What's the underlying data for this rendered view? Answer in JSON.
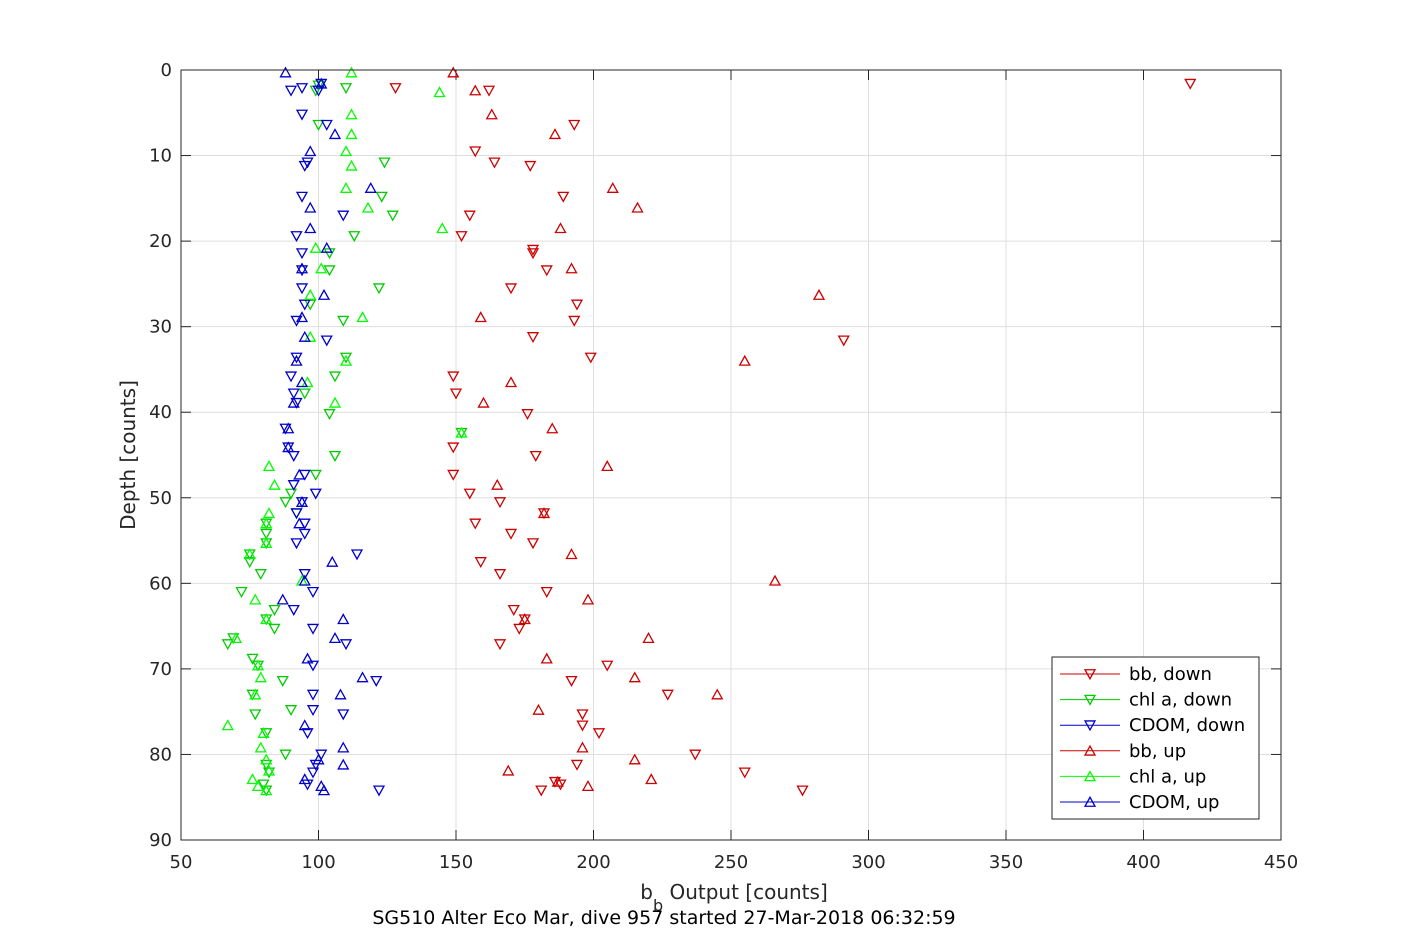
{
  "chart_data": {
    "type": "scatter",
    "title": "SG510 Alter Eco Mar, dive 957 started 27-Mar-2018 06:32:59",
    "xlabel_main": "b",
    "xlabel_sub": "b",
    "xlabel_rest": " Output [counts]",
    "ylabel": "Depth [counts]",
    "xlim": [
      50,
      450
    ],
    "ylim": [
      0,
      90
    ],
    "y_reversed": true,
    "grid": true,
    "legend_position": "bottom-right",
    "x_ticks": [
      50,
      100,
      150,
      200,
      250,
      300,
      350,
      400,
      450
    ],
    "y_ticks": [
      0,
      10,
      20,
      30,
      40,
      50,
      60,
      70,
      80,
      90
    ],
    "colors": {
      "bb": "#cc0000",
      "chl": "#00cc00",
      "cdom": "#0000cc"
    },
    "series": [
      {
        "name": "bb, down",
        "color": "#cc0000",
        "marker": "triangle-down",
        "points": [
          [
            417,
            1.6
          ],
          [
            128,
            2.1
          ],
          [
            162,
            2.4
          ],
          [
            193,
            6.4
          ],
          [
            157,
            9.5
          ],
          [
            164,
            10.8
          ],
          [
            177,
            11.2
          ],
          [
            189,
            14.8
          ],
          [
            155,
            17.0
          ],
          [
            152,
            19.4
          ],
          [
            178,
            21.0
          ],
          [
            178,
            21.4
          ],
          [
            183,
            23.4
          ],
          [
            170,
            25.5
          ],
          [
            194,
            27.4
          ],
          [
            193,
            29.3
          ],
          [
            178,
            31.2
          ],
          [
            291,
            31.6
          ],
          [
            199,
            33.6
          ],
          [
            149,
            35.8
          ],
          [
            150,
            37.8
          ],
          [
            176,
            40.2
          ],
          [
            179,
            45.1
          ],
          [
            149,
            44.1
          ],
          [
            149,
            47.3
          ],
          [
            155,
            49.5
          ],
          [
            166,
            50.5
          ],
          [
            182,
            51.8
          ],
          [
            157,
            53.0
          ],
          [
            170,
            54.2
          ],
          [
            178,
            55.3
          ],
          [
            159,
            57.5
          ],
          [
            166,
            58.9
          ],
          [
            183,
            61.0
          ],
          [
            171,
            63.1
          ],
          [
            175,
            64.2
          ],
          [
            173,
            65.3
          ],
          [
            166,
            67.1
          ],
          [
            205,
            69.6
          ],
          [
            192,
            71.4
          ],
          [
            227,
            73.0
          ],
          [
            196,
            75.3
          ],
          [
            196,
            76.6
          ],
          [
            202,
            77.5
          ],
          [
            237,
            80.0
          ],
          [
            194,
            81.2
          ],
          [
            255,
            82.1
          ],
          [
            188,
            83.5
          ],
          [
            186,
            83.2
          ],
          [
            181,
            84.2
          ],
          [
            276,
            84.2
          ]
        ]
      },
      {
        "name": "chl a, down",
        "color": "#00cc00",
        "marker": "triangle-down",
        "points": [
          [
            100,
            1.8
          ],
          [
            110,
            2.1
          ],
          [
            99,
            2.4
          ],
          [
            100,
            6.4
          ],
          [
            124,
            10.8
          ],
          [
            123,
            14.8
          ],
          [
            127,
            17.0
          ],
          [
            113,
            19.4
          ],
          [
            104,
            21.4
          ],
          [
            104,
            23.4
          ],
          [
            122,
            25.5
          ],
          [
            97,
            27.4
          ],
          [
            109,
            29.3
          ],
          [
            110,
            33.6
          ],
          [
            106,
            35.8
          ],
          [
            95,
            37.8
          ],
          [
            104,
            40.2
          ],
          [
            152,
            42.4
          ],
          [
            106,
            45.1
          ],
          [
            99,
            47.3
          ],
          [
            90,
            49.5
          ],
          [
            88,
            50.5
          ],
          [
            92,
            51.8
          ],
          [
            81,
            53.0
          ],
          [
            81,
            54.2
          ],
          [
            81,
            55.3
          ],
          [
            75,
            56.6
          ],
          [
            75,
            57.5
          ],
          [
            79,
            58.9
          ],
          [
            72,
            61.0
          ],
          [
            84,
            63.1
          ],
          [
            81,
            64.2
          ],
          [
            84,
            65.3
          ],
          [
            69,
            66.4
          ],
          [
            67,
            67.1
          ],
          [
            76,
            68.8
          ],
          [
            78,
            69.6
          ],
          [
            87,
            71.4
          ],
          [
            76,
            73.0
          ],
          [
            90,
            74.8
          ],
          [
            77,
            75.3
          ],
          [
            81,
            77.5
          ],
          [
            88,
            80.0
          ],
          [
            81,
            81.2
          ],
          [
            82,
            82.1
          ],
          [
            80,
            83.5
          ],
          [
            81,
            84.2
          ]
        ]
      },
      {
        "name": "CDOM, down",
        "color": "#0000cc",
        "marker": "triangle-down",
        "points": [
          [
            101,
            1.6
          ],
          [
            94,
            2.1
          ],
          [
            90,
            2.4
          ],
          [
            100,
            2.4
          ],
          [
            94,
            5.2
          ],
          [
            103,
            6.4
          ],
          [
            96,
            10.8
          ],
          [
            95,
            11.2
          ],
          [
            94,
            14.8
          ],
          [
            109,
            17.0
          ],
          [
            92,
            19.4
          ],
          [
            94,
            21.4
          ],
          [
            94,
            23.4
          ],
          [
            94,
            25.5
          ],
          [
            95,
            27.4
          ],
          [
            92,
            29.3
          ],
          [
            103,
            31.6
          ],
          [
            92,
            33.6
          ],
          [
            90,
            35.8
          ],
          [
            91,
            37.8
          ],
          [
            92,
            38.9
          ],
          [
            88,
            41.9
          ],
          [
            89,
            44.1
          ],
          [
            91,
            45.1
          ],
          [
            95,
            47.3
          ],
          [
            91,
            48.5
          ],
          [
            99,
            49.5
          ],
          [
            94,
            50.5
          ],
          [
            92,
            51.8
          ],
          [
            95,
            53.0
          ],
          [
            95,
            54.2
          ],
          [
            92,
            55.3
          ],
          [
            114,
            56.6
          ],
          [
            95,
            58.9
          ],
          [
            98,
            61.0
          ],
          [
            91,
            63.1
          ],
          [
            98,
            65.3
          ],
          [
            110,
            67.1
          ],
          [
            98,
            69.6
          ],
          [
            121,
            71.4
          ],
          [
            98,
            73.0
          ],
          [
            98,
            74.8
          ],
          [
            109,
            75.3
          ],
          [
            96,
            77.5
          ],
          [
            101,
            80.0
          ],
          [
            99,
            81.2
          ],
          [
            98,
            82.1
          ],
          [
            96,
            83.5
          ],
          [
            122,
            84.2
          ]
        ]
      },
      {
        "name": "bb, up",
        "color": "#cc0000",
        "marker": "triangle-up",
        "points": [
          [
            149,
            0.3
          ],
          [
            157,
            2.4
          ],
          [
            163,
            5.2
          ],
          [
            186,
            7.5
          ],
          [
            207,
            13.8
          ],
          [
            216,
            16.1
          ],
          [
            188,
            18.5
          ],
          [
            192,
            23.2
          ],
          [
            282,
            26.3
          ],
          [
            159,
            28.9
          ],
          [
            255,
            34.0
          ],
          [
            170,
            36.5
          ],
          [
            160,
            38.9
          ],
          [
            185,
            41.9
          ],
          [
            205,
            46.3
          ],
          [
            165,
            48.5
          ],
          [
            182,
            51.8
          ],
          [
            192,
            56.6
          ],
          [
            266,
            59.7
          ],
          [
            198,
            61.9
          ],
          [
            175,
            64.2
          ],
          [
            220,
            66.4
          ],
          [
            183,
            68.8
          ],
          [
            215,
            71.0
          ],
          [
            245,
            73.0
          ],
          [
            180,
            74.8
          ],
          [
            196,
            79.2
          ],
          [
            215,
            80.6
          ],
          [
            169,
            81.9
          ],
          [
            221,
            82.9
          ],
          [
            187,
            83.2
          ],
          [
            198,
            83.7
          ]
        ]
      },
      {
        "name": "chl a, up",
        "color": "#00ff00",
        "marker": "triangle-up",
        "points": [
          [
            112,
            0.3
          ],
          [
            144,
            2.6
          ],
          [
            112,
            5.2
          ],
          [
            112,
            7.5
          ],
          [
            110,
            9.5
          ],
          [
            112,
            11.2
          ],
          [
            110,
            13.8
          ],
          [
            118,
            16.1
          ],
          [
            145,
            18.5
          ],
          [
            99,
            20.8
          ],
          [
            101,
            23.2
          ],
          [
            97,
            26.3
          ],
          [
            116,
            28.9
          ],
          [
            97,
            31.2
          ],
          [
            110,
            34.0
          ],
          [
            96,
            36.5
          ],
          [
            106,
            38.9
          ],
          [
            152,
            42.4
          ],
          [
            82,
            46.3
          ],
          [
            84,
            48.5
          ],
          [
            82,
            51.8
          ],
          [
            81,
            53.0
          ],
          [
            81,
            55.3
          ],
          [
            75,
            56.6
          ],
          [
            94,
            59.7
          ],
          [
            77,
            61.9
          ],
          [
            81,
            64.2
          ],
          [
            70,
            66.4
          ],
          [
            78,
            69.6
          ],
          [
            79,
            71.0
          ],
          [
            77,
            73.0
          ],
          [
            67,
            76.6
          ],
          [
            80,
            77.5
          ],
          [
            79,
            79.2
          ],
          [
            81,
            80.6
          ],
          [
            82,
            81.9
          ],
          [
            76,
            82.9
          ],
          [
            78,
            83.7
          ],
          [
            81,
            84.2
          ]
        ]
      },
      {
        "name": "CDOM, up",
        "color": "#0000cc",
        "marker": "triangle-up",
        "points": [
          [
            88,
            0.3
          ],
          [
            101,
            1.6
          ],
          [
            106,
            7.5
          ],
          [
            97,
            9.5
          ],
          [
            119,
            13.8
          ],
          [
            97,
            16.1
          ],
          [
            97,
            18.5
          ],
          [
            103,
            20.8
          ],
          [
            94,
            23.2
          ],
          [
            102,
            26.3
          ],
          [
            94,
            28.9
          ],
          [
            95,
            31.2
          ],
          [
            92,
            34.0
          ],
          [
            94,
            36.5
          ],
          [
            91,
            38.9
          ],
          [
            89,
            41.9
          ],
          [
            89,
            44.1
          ],
          [
            93,
            47.3
          ],
          [
            94,
            50.5
          ],
          [
            93,
            53.0
          ],
          [
            105,
            57.5
          ],
          [
            95,
            59.7
          ],
          [
            87,
            61.9
          ],
          [
            109,
            64.2
          ],
          [
            106,
            66.4
          ],
          [
            96,
            68.8
          ],
          [
            116,
            71.0
          ],
          [
            108,
            73.0
          ],
          [
            95,
            76.6
          ],
          [
            109,
            79.2
          ],
          [
            100,
            80.6
          ],
          [
            109,
            81.2
          ],
          [
            95,
            82.9
          ],
          [
            101,
            83.7
          ],
          [
            102,
            84.2
          ]
        ]
      }
    ]
  }
}
